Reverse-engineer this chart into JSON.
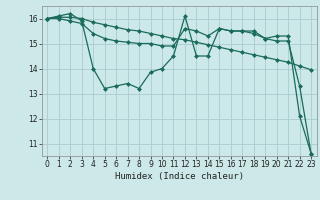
{
  "xlabel": "Humidex (Indice chaleur)",
  "x": [
    0,
    1,
    2,
    3,
    4,
    5,
    6,
    7,
    8,
    9,
    10,
    11,
    12,
    13,
    14,
    15,
    16,
    17,
    18,
    19,
    20,
    21,
    22,
    23
  ],
  "line1": [
    16.0,
    16.1,
    16.2,
    15.9,
    14.0,
    13.2,
    13.3,
    13.4,
    13.2,
    13.85,
    14.0,
    14.5,
    16.1,
    14.5,
    14.5,
    15.6,
    15.5,
    15.5,
    15.5,
    15.2,
    15.3,
    15.3,
    12.1,
    10.6
  ],
  "line2": [
    16.0,
    16.05,
    16.05,
    16.0,
    15.85,
    15.75,
    15.65,
    15.55,
    15.5,
    15.4,
    15.3,
    15.2,
    15.15,
    15.05,
    14.95,
    14.85,
    14.75,
    14.65,
    14.55,
    14.45,
    14.35,
    14.25,
    14.1,
    13.95
  ],
  "line3": [
    16.0,
    16.0,
    15.9,
    15.8,
    15.4,
    15.2,
    15.1,
    15.05,
    15.0,
    15.0,
    14.9,
    14.9,
    15.6,
    15.5,
    15.3,
    15.6,
    15.5,
    15.5,
    15.4,
    15.2,
    15.1,
    15.1,
    13.3,
    10.6
  ],
  "line_color": "#1a6b5a",
  "bg_color": "#cce8e8",
  "grid_color": "#aacccc",
  "ylim": [
    10.5,
    16.5
  ],
  "yticks": [
    11,
    12,
    13,
    14,
    15,
    16
  ],
  "xticks": [
    0,
    1,
    2,
    3,
    4,
    5,
    6,
    7,
    8,
    9,
    10,
    11,
    12,
    13,
    14,
    15,
    16,
    17,
    18,
    19,
    20,
    21,
    22,
    23
  ]
}
